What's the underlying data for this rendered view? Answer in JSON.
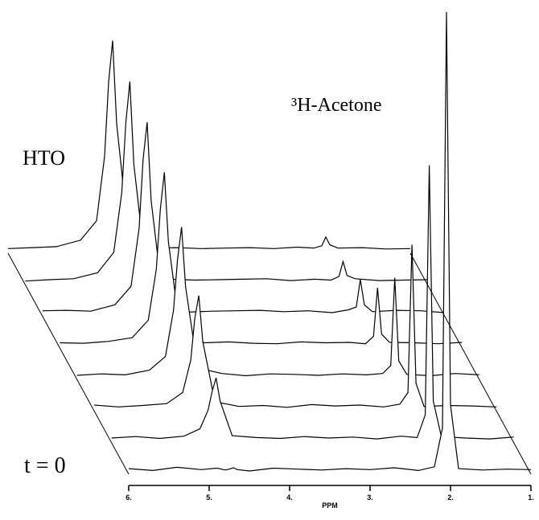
{
  "chart_data": {
    "type": "waterfall",
    "annotations": [
      "HTO",
      "³H-Acetone",
      "t = 0"
    ],
    "x_label": "PPM",
    "xlim": [
      6,
      1
    ],
    "xticks": [
      {
        "value": 6,
        "label": "6."
      },
      {
        "value": 5,
        "label": "5."
      },
      {
        "value": 4,
        "label": "4."
      },
      {
        "value": 3,
        "label": "3."
      },
      {
        "value": 2,
        "label": "2."
      },
      {
        "value": 1,
        "label": "1."
      }
    ],
    "ylim": [
      0,
      100
    ],
    "color": "#000000",
    "x": [
      6.0,
      5.7,
      5.4,
      5.1,
      4.9,
      4.8,
      4.75,
      4.7,
      4.65,
      4.5,
      4.2,
      3.9,
      3.6,
      3.3,
      3.0,
      2.7,
      2.4,
      2.2,
      2.1,
      2.05,
      2.0,
      1.9,
      1.6,
      1.3,
      1.0
    ],
    "series": [
      {
        "values": [
          1.2,
          0.8,
          1.5,
          1.0,
          1.3,
          0.9,
          1.1,
          1.4,
          1.0,
          0.7,
          1.3,
          1.1,
          0.9,
          1.2,
          1.0,
          1.4,
          0.8,
          1.6,
          10,
          100,
          15,
          1.2,
          0.9,
          1.1,
          1.0
        ]
      },
      {
        "values": [
          1.0,
          1.3,
          0.9,
          1.4,
          3,
          7,
          11,
          14,
          9,
          1.5,
          1.1,
          0.9,
          1.3,
          1.0,
          1.2,
          0.8,
          1.4,
          1.1,
          6,
          60,
          9,
          1.3,
          1.0,
          0.8,
          1.2
        ]
      },
      {
        "values": [
          1.3,
          0.9,
          1.2,
          1.6,
          4,
          11,
          20,
          25,
          15,
          2,
          1.0,
          1.2,
          0.8,
          1.4,
          1.1,
          1.3,
          0.9,
          1.5,
          4,
          36,
          6,
          1.0,
          1.2,
          1.1,
          0.9
        ]
      },
      {
        "values": [
          0.9,
          1.2,
          1.0,
          2,
          5,
          15,
          26,
          33,
          20,
          2.5,
          1.3,
          0.8,
          1.2,
          1.1,
          0.9,
          1.2,
          1.0,
          1.3,
          3,
          22,
          4,
          1.1,
          0.8,
          1.3,
          1.0
        ]
      },
      {
        "values": [
          1.1,
          1.0,
          1.4,
          2.2,
          6,
          17,
          30,
          38,
          23,
          3,
          1.1,
          1.3,
          1.0,
          0.9,
          1.3,
          1.1,
          1.2,
          0.9,
          2.5,
          13,
          3,
          1.2,
          1.1,
          0.9,
          1.2
        ]
      },
      {
        "values": [
          1.2,
          1.3,
          1.1,
          2.5,
          6.5,
          19,
          34,
          42,
          25,
          3,
          0.9,
          1.1,
          1.2,
          1.3,
          1.0,
          1.2,
          0.8,
          1.4,
          2,
          8,
          2.5,
          1.0,
          1.3,
          1.2,
          0.8
        ]
      },
      {
        "values": [
          0.8,
          1.1,
          1.3,
          2.6,
          7,
          20,
          35,
          44,
          26,
          3.2,
          1.2,
          1.0,
          1.1,
          1.2,
          1.3,
          0.9,
          1.2,
          1.0,
          1.8,
          5,
          2,
          1.3,
          0.9,
          1.0,
          1.1
        ]
      },
      {
        "values": [
          1.0,
          1.2,
          1.4,
          2.8,
          7,
          21,
          37,
          46,
          28,
          3.4,
          1.1,
          1.2,
          1.0,
          1.1,
          1.2,
          1.0,
          1.3,
          1.1,
          1.6,
          3.5,
          1.8,
          1.1,
          1.2,
          0.9,
          1.0
        ]
      }
    ]
  }
}
